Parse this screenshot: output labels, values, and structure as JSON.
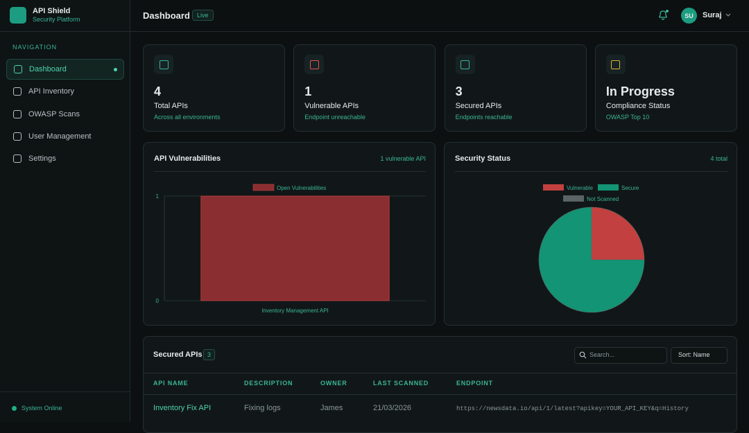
{
  "app": {
    "name": "API Shield",
    "tagline": "Security Platform"
  },
  "nav": {
    "heading": "NAVIGATION",
    "items": [
      "Dashboard",
      "API Inventory",
      "OWASP Scans",
      "User Management",
      "Settings"
    ]
  },
  "status": "System Online",
  "header": {
    "title": "Dashboard",
    "badge": "Live",
    "avatar": "SU",
    "user": "Suraj"
  },
  "stats": [
    {
      "value": 4,
      "label": "Total APIs",
      "sub": "Across all environments"
    },
    {
      "value": 1,
      "label": "Vulnerable APIs",
      "sub": "Endpoint unreachable"
    },
    {
      "value": 3,
      "label": "Secured APIs",
      "sub": "Endpoints reachable"
    },
    {
      "value": "In Progress",
      "label": "Compliance Status",
      "sub": "OWASP Top 10"
    }
  ],
  "chart_data": [
    {
      "type": "bar",
      "title": "API Vulnerabilities",
      "subtitle": "1 vulnerable API",
      "categories": [
        "Inventory Management API"
      ],
      "series": [
        {
          "name": "Open Vulnerabilities",
          "color": "#8b2e32",
          "values": [
            1
          ]
        }
      ],
      "ylim": [
        0,
        1
      ],
      "yticks": [
        0,
        1
      ],
      "grid": true
    },
    {
      "type": "pie",
      "title": "Security Status",
      "subtitle": "4 total",
      "categories": [
        "Vulnerable",
        "Secure",
        "Not Scanned"
      ],
      "values": [
        1,
        3,
        0
      ],
      "colors": [
        "#c2403f",
        "#139474",
        "#5a6466"
      ]
    }
  ],
  "table": {
    "title": "Secured APIs",
    "count": 3,
    "search": "Search...",
    "sort": "Sort: Name",
    "columns": [
      "API NAME",
      "DESCRIPTION",
      "OWNER",
      "LAST SCANNED",
      "ENDPOINT"
    ],
    "rows": [
      [
        "Inventory Fix API",
        "Fixing logs",
        "James",
        "21/03/2026",
        "https://newsdata.io/api/1/latest?apikey=YOUR_API_KEY&q=History"
      ]
    ]
  }
}
